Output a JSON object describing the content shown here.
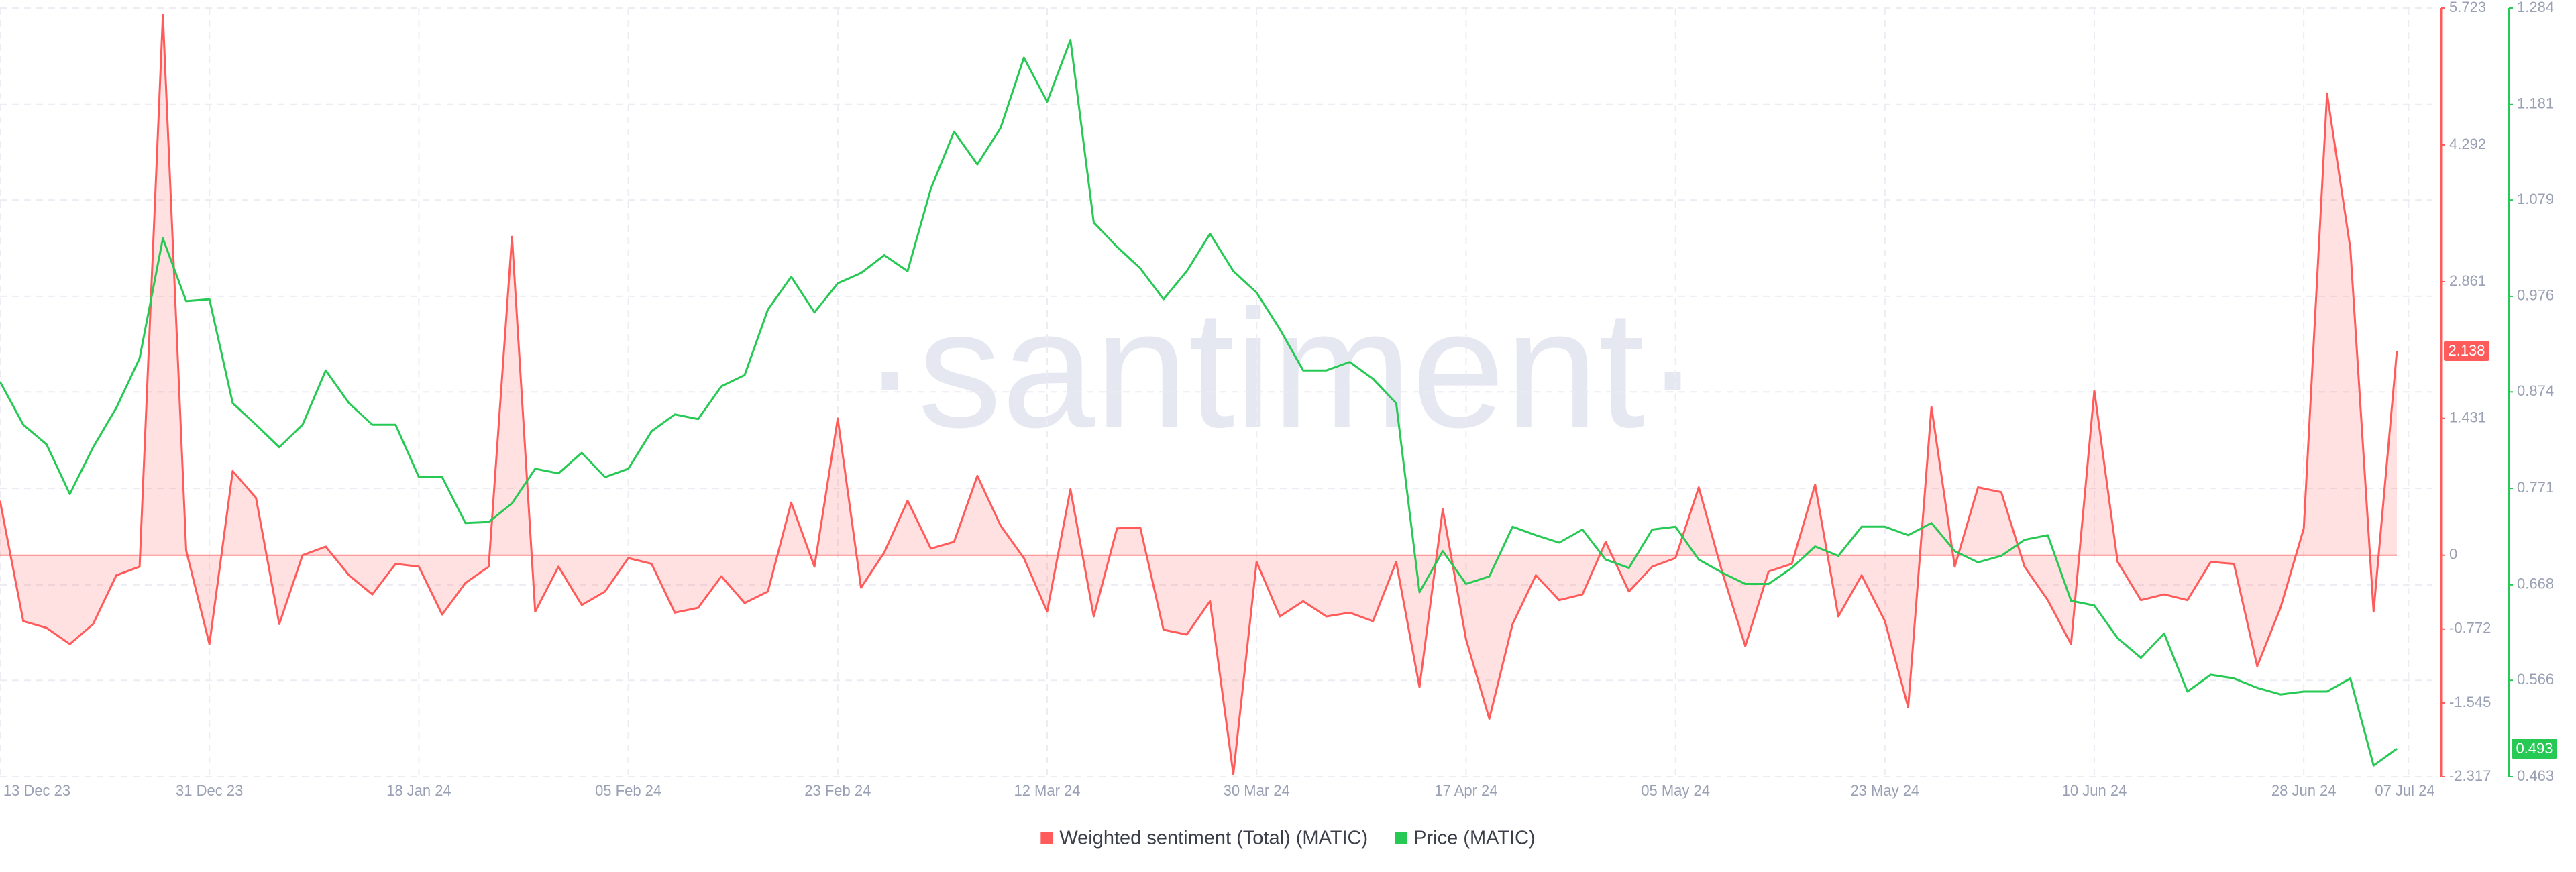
{
  "chart_data": {
    "type": "line",
    "watermark": "·santiment·",
    "x": [
      "2023-12-13",
      "2023-12-15",
      "2023-12-17",
      "2023-12-19",
      "2023-12-21",
      "2023-12-23",
      "2023-12-25",
      "2023-12-27",
      "2023-12-29",
      "2023-12-31",
      "2024-01-02",
      "2024-01-04",
      "2024-01-06",
      "2024-01-08",
      "2024-01-10",
      "2024-01-12",
      "2024-01-14",
      "2024-01-16",
      "2024-01-18",
      "2024-01-20",
      "2024-01-22",
      "2024-01-24",
      "2024-01-26",
      "2024-01-28",
      "2024-01-30",
      "2024-02-01",
      "2024-02-03",
      "2024-02-05",
      "2024-02-07",
      "2024-02-09",
      "2024-02-11",
      "2024-02-13",
      "2024-02-15",
      "2024-02-17",
      "2024-02-19",
      "2024-02-21",
      "2024-02-23",
      "2024-02-25",
      "2024-02-27",
      "2024-02-29",
      "2024-03-02",
      "2024-03-04",
      "2024-03-06",
      "2024-03-08",
      "2024-03-10",
      "2024-03-12",
      "2024-03-14",
      "2024-03-16",
      "2024-03-18",
      "2024-03-20",
      "2024-03-22",
      "2024-03-24",
      "2024-03-26",
      "2024-03-28",
      "2024-03-30",
      "2024-04-01",
      "2024-04-03",
      "2024-04-05",
      "2024-04-07",
      "2024-04-09",
      "2024-04-11",
      "2024-04-13",
      "2024-04-15",
      "2024-04-17",
      "2024-04-19",
      "2024-04-21",
      "2024-04-23",
      "2024-04-25",
      "2024-04-27",
      "2024-04-29",
      "2024-05-01",
      "2024-05-03",
      "2024-05-05",
      "2024-05-07",
      "2024-05-09",
      "2024-05-11",
      "2024-05-13",
      "2024-05-15",
      "2024-05-17",
      "2024-05-19",
      "2024-05-21",
      "2024-05-23",
      "2024-05-25",
      "2024-05-27",
      "2024-05-29",
      "2024-05-31",
      "2024-06-02",
      "2024-06-04",
      "2024-06-06",
      "2024-06-08",
      "2024-06-10",
      "2024-06-12",
      "2024-06-14",
      "2024-06-16",
      "2024-06-18",
      "2024-06-20",
      "2024-06-22",
      "2024-06-24",
      "2024-06-26",
      "2024-06-28",
      "2024-06-30",
      "2024-07-02",
      "2024-07-04",
      "2024-07-06"
    ],
    "xlim": [
      "2023-12-13",
      "2024-07-09"
    ],
    "xticks": [
      {
        "value": "2023-12-13",
        "label": "13 Dec 23"
      },
      {
        "value": "2023-12-31",
        "label": "31 Dec 23"
      },
      {
        "value": "2024-01-18",
        "label": "18 Jan 24"
      },
      {
        "value": "2024-02-05",
        "label": "05 Feb 24"
      },
      {
        "value": "2024-02-23",
        "label": "23 Feb 24"
      },
      {
        "value": "2024-03-12",
        "label": "12 Mar 24"
      },
      {
        "value": "2024-03-30",
        "label": "30 Mar 24"
      },
      {
        "value": "2024-04-17",
        "label": "17 Apr 24"
      },
      {
        "value": "2024-05-05",
        "label": "05 May 24"
      },
      {
        "value": "2024-05-23",
        "label": "23 May 24"
      },
      {
        "value": "2024-06-10",
        "label": "10 Jun 24"
      },
      {
        "value": "2024-06-28",
        "label": "28 Jun 24"
      },
      {
        "value": "2024-07-07",
        "label": "07 Jul 24"
      }
    ],
    "ylim": [
      -2.317,
      5.723
    ],
    "yticks": [
      -2.317,
      -1.545,
      -0.772,
      0,
      1.431,
      2.861,
      4.292,
      5.723
    ],
    "y2lim": [
      0.463,
      1.284
    ],
    "y2ticks": [
      0.463,
      0.566,
      0.668,
      0.771,
      0.874,
      0.976,
      1.079,
      1.181,
      1.284
    ],
    "grid": true,
    "series": [
      {
        "name": "Weighted sentiment (Total) (MATIC)",
        "color": "#ff5b5b",
        "area": true,
        "values": [
          0.57,
          -0.69,
          -0.76,
          -0.93,
          -0.72,
          -0.21,
          -0.12,
          5.65,
          0.05,
          -0.93,
          0.88,
          0.6,
          -0.72,
          0,
          0.09,
          -0.21,
          -0.41,
          -0.09,
          -0.12,
          -0.62,
          -0.29,
          -0.12,
          3.33,
          -0.59,
          -0.12,
          -0.52,
          -0.38,
          -0.03,
          -0.09,
          -0.6,
          -0.55,
          -0.22,
          -0.5,
          -0.38,
          0.55,
          -0.12,
          1.43,
          -0.34,
          0.03,
          0.57,
          0.07,
          0.14,
          0.83,
          0.31,
          -0.03,
          -0.59,
          0.69,
          -0.64,
          0.28,
          0.29,
          -0.78,
          -0.83,
          -0.48,
          -2.29,
          -0.07,
          -0.64,
          -0.48,
          -0.64,
          -0.6,
          -0.69,
          -0.07,
          -1.38,
          0.48,
          -0.88,
          -1.71,
          -0.72,
          -0.21,
          -0.47,
          -0.41,
          0.14,
          -0.38,
          -0.12,
          -0.03,
          0.71,
          -0.17,
          -0.95,
          -0.17,
          -0.09,
          0.74,
          -0.64,
          -0.21,
          -0.69,
          -1.59,
          1.55,
          -0.12,
          0.71,
          0.66,
          -0.12,
          -0.47,
          -0.93,
          1.72,
          -0.07,
          -0.47,
          -0.41,
          -0.47,
          -0.07,
          -0.09,
          -1.16,
          -0.55,
          0.28,
          4.83,
          3.21,
          -0.59,
          2.138
        ]
      },
      {
        "name": "Price (MATIC)",
        "color": "#26c953",
        "axis": "y2",
        "values": [
          0.885,
          0.839,
          0.818,
          0.765,
          0.815,
          0.857,
          0.91,
          1.038,
          0.971,
          0.973,
          0.862,
          0.839,
          0.815,
          0.839,
          0.897,
          0.862,
          0.839,
          0.839,
          0.783,
          0.783,
          0.734,
          0.735,
          0.755,
          0.792,
          0.787,
          0.809,
          0.783,
          0.792,
          0.832,
          0.85,
          0.845,
          0.88,
          0.892,
          0.962,
          0.997,
          0.959,
          0.99,
          1.001,
          1.02,
          1.003,
          1.091,
          1.152,
          1.117,
          1.156,
          1.231,
          1.184,
          1.25,
          1.055,
          1.029,
          1.006,
          0.973,
          1.003,
          1.043,
          1.003,
          0.98,
          0.941,
          0.897,
          0.897,
          0.906,
          0.888,
          0.862,
          0.66,
          0.704,
          0.669,
          0.677,
          0.73,
          0.721,
          0.713,
          0.727,
          0.695,
          0.686,
          0.727,
          0.73,
          0.695,
          0.681,
          0.669,
          0.669,
          0.686,
          0.709,
          0.699,
          0.73,
          0.73,
          0.721,
          0.734,
          0.704,
          0.692,
          0.699,
          0.716,
          0.721,
          0.651,
          0.646,
          0.611,
          0.59,
          0.616,
          0.554,
          0.572,
          0.568,
          0.558,
          0.551,
          0.554,
          0.554,
          0.568,
          0.475,
          0.493
        ]
      }
    ]
  }
}
